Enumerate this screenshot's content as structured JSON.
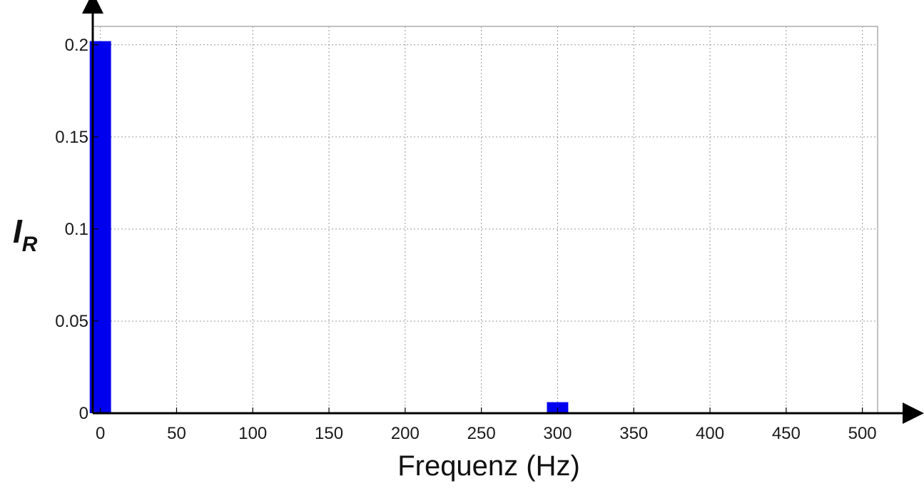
{
  "chart_data": {
    "type": "bar",
    "x": [
      0,
      300
    ],
    "values": [
      0.202,
      0.006
    ],
    "title": "",
    "xlabel": "Frequenz (Hz)",
    "ylabel": {
      "main": "I",
      "subscript": "R"
    },
    "xlim": [
      -5,
      510
    ],
    "ylim": [
      0,
      0.21
    ],
    "xticks": [
      0,
      50,
      100,
      150,
      200,
      250,
      300,
      350,
      400,
      450,
      500
    ],
    "yticks": [
      0,
      0.05,
      0.1,
      0.15,
      0.2
    ],
    "xtick_labels": [
      "0",
      "50",
      "100",
      "150",
      "200",
      "250",
      "300",
      "350",
      "400",
      "450",
      "500"
    ],
    "ytick_labels": [
      "0",
      "0.05",
      "0.1",
      "0.15",
      "0.2"
    ],
    "bar_width": 14,
    "grid": true,
    "legend": "none",
    "colors": {
      "bar": "#0000ee",
      "axis": "#000000",
      "grid": "#9a9a9a",
      "frame": "#9a9a9a"
    }
  }
}
